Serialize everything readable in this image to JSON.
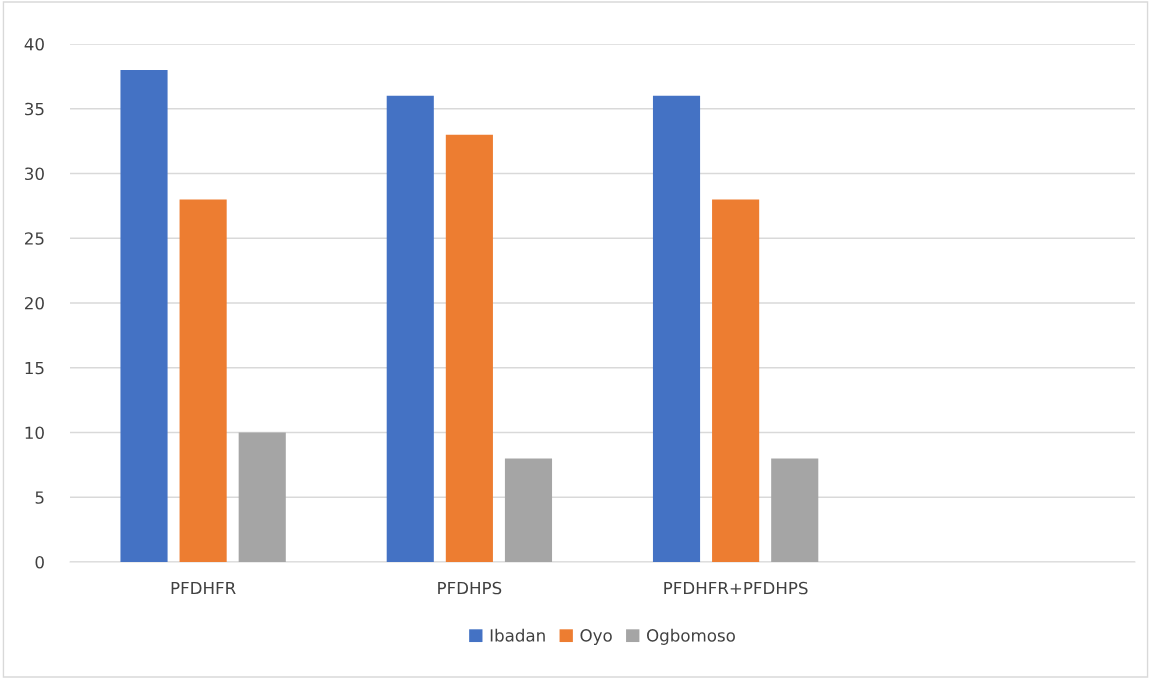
{
  "chart_data": {
    "type": "bar",
    "categories": [
      "PFDHFR",
      "PFDHPS",
      "PFDHFR+PFDHPS",
      null
    ],
    "series": [
      {
        "name": "Ibadan",
        "color": "#4472c4",
        "values": [
          38,
          36,
          36,
          null
        ]
      },
      {
        "name": "Oyo",
        "color": "#ed7d31",
        "values": [
          28,
          33,
          28,
          null
        ]
      },
      {
        "name": "Ogbomoso",
        "color": "#a5a5a5",
        "values": [
          10,
          8,
          8,
          null
        ]
      }
    ],
    "ylim": [
      0,
      40
    ],
    "yticks": [
      0,
      5,
      10,
      15,
      20,
      25,
      30,
      35,
      40
    ],
    "grid": "y",
    "legend": "bottom"
  }
}
